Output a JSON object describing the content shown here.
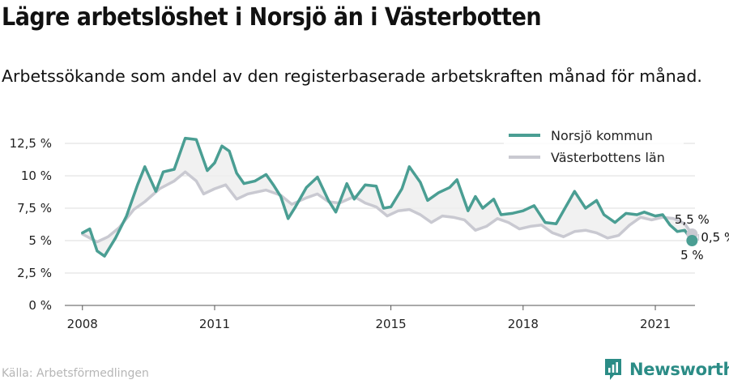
{
  "title": "Lägre arbetslöshet i Norsjö än i Västerbotten",
  "subtitle": "Arbetssökande som andel av den registerbaserade arbetskraften månad för månad.",
  "source": "Källa: Arbetsförmedlingen",
  "brand": {
    "name": "Newsworthy",
    "icon": "newsworthy-logo-icon"
  },
  "colors": {
    "series_1": "#4a9e93",
    "series_2": "#c9c9d1",
    "fill": "#eeeeee",
    "grid": "#dddddd"
  },
  "chart_data": {
    "type": "line",
    "x_axis": {
      "ticks": [
        "2008",
        "2011",
        "2015",
        "2018",
        "2021"
      ],
      "range": [
        2007.6,
        2021.9
      ]
    },
    "y_axis": {
      "ticks": [
        "0 %",
        "2,5 %",
        "5 %",
        "7,5 %",
        "10 %",
        "12,5 %"
      ],
      "range": [
        0,
        12.5
      ]
    },
    "grid": true,
    "legend_position": "top-right",
    "series": [
      {
        "name": "Norsjö kommun",
        "end_label": "5 %",
        "points": [
          [
            "2008-01",
            5.6
          ],
          [
            "2008-03",
            5.9
          ],
          [
            "2008-05",
            4.2
          ],
          [
            "2008-07",
            3.8
          ],
          [
            "2008-10",
            5.2
          ],
          [
            "2009-01",
            6.9
          ],
          [
            "2009-04",
            9.3
          ],
          [
            "2009-06",
            10.7
          ],
          [
            "2009-09",
            8.8
          ],
          [
            "2009-11",
            10.3
          ],
          [
            "2010-02",
            10.5
          ],
          [
            "2010-05",
            12.9
          ],
          [
            "2010-08",
            12.8
          ],
          [
            "2010-11",
            10.4
          ],
          [
            "2011-01",
            11.0
          ],
          [
            "2011-03",
            12.3
          ],
          [
            "2011-05",
            11.9
          ],
          [
            "2011-07",
            10.2
          ],
          [
            "2011-09",
            9.4
          ],
          [
            "2011-12",
            9.6
          ],
          [
            "2012-03",
            10.1
          ],
          [
            "2012-05",
            9.3
          ],
          [
            "2012-07",
            8.4
          ],
          [
            "2012-09",
            6.7
          ],
          [
            "2012-11",
            7.6
          ],
          [
            "2013-02",
            9.1
          ],
          [
            "2013-05",
            9.9
          ],
          [
            "2013-08",
            8.1
          ],
          [
            "2013-10",
            7.2
          ],
          [
            "2014-01",
            9.4
          ],
          [
            "2014-03",
            8.2
          ],
          [
            "2014-06",
            9.3
          ],
          [
            "2014-09",
            9.2
          ],
          [
            "2014-11",
            7.5
          ],
          [
            "2015-01",
            7.6
          ],
          [
            "2015-04",
            9.0
          ],
          [
            "2015-06",
            10.7
          ],
          [
            "2015-09",
            9.5
          ],
          [
            "2015-11",
            8.1
          ],
          [
            "2016-02",
            8.7
          ],
          [
            "2016-05",
            9.1
          ],
          [
            "2016-07",
            9.7
          ],
          [
            "2016-10",
            7.3
          ],
          [
            "2016-12",
            8.4
          ],
          [
            "2017-02",
            7.5
          ],
          [
            "2017-05",
            8.2
          ],
          [
            "2017-07",
            7.0
          ],
          [
            "2017-10",
            7.1
          ],
          [
            "2018-01",
            7.3
          ],
          [
            "2018-04",
            7.7
          ],
          [
            "2018-07",
            6.4
          ],
          [
            "2018-10",
            6.3
          ],
          [
            "2019-01",
            7.8
          ],
          [
            "2019-03",
            8.8
          ],
          [
            "2019-06",
            7.5
          ],
          [
            "2019-09",
            8.1
          ],
          [
            "2019-11",
            7.0
          ],
          [
            "2020-02",
            6.4
          ],
          [
            "2020-05",
            7.1
          ],
          [
            "2020-08",
            7.0
          ],
          [
            "2020-10",
            7.2
          ],
          [
            "2021-01",
            6.9
          ],
          [
            "2021-03",
            7.0
          ],
          [
            "2021-05",
            6.2
          ],
          [
            "2021-07",
            5.7
          ],
          [
            "2021-09",
            5.8
          ],
          [
            "2021-11",
            5.0
          ]
        ]
      },
      {
        "name": "Västerbottens län",
        "end_label": "5,5 %",
        "points": [
          [
            "2008-01",
            5.5
          ],
          [
            "2008-05",
            4.9
          ],
          [
            "2008-08",
            5.3
          ],
          [
            "2008-11",
            6.0
          ],
          [
            "2009-03",
            7.4
          ],
          [
            "2009-06",
            8.0
          ],
          [
            "2009-10",
            9.0
          ],
          [
            "2010-02",
            9.6
          ],
          [
            "2010-05",
            10.3
          ],
          [
            "2010-08",
            9.6
          ],
          [
            "2010-10",
            8.6
          ],
          [
            "2011-01",
            9.0
          ],
          [
            "2011-04",
            9.3
          ],
          [
            "2011-07",
            8.2
          ],
          [
            "2011-10",
            8.6
          ],
          [
            "2012-03",
            8.9
          ],
          [
            "2012-07",
            8.5
          ],
          [
            "2012-10",
            7.8
          ],
          [
            "2013-02",
            8.3
          ],
          [
            "2013-05",
            8.6
          ],
          [
            "2013-08",
            8.0
          ],
          [
            "2013-11",
            7.9
          ],
          [
            "2014-03",
            8.4
          ],
          [
            "2014-06",
            7.9
          ],
          [
            "2014-09",
            7.6
          ],
          [
            "2014-12",
            6.9
          ],
          [
            "2015-03",
            7.3
          ],
          [
            "2015-06",
            7.4
          ],
          [
            "2015-09",
            7.0
          ],
          [
            "2015-12",
            6.4
          ],
          [
            "2016-03",
            6.9
          ],
          [
            "2016-06",
            6.8
          ],
          [
            "2016-09",
            6.6
          ],
          [
            "2016-12",
            5.8
          ],
          [
            "2017-03",
            6.1
          ],
          [
            "2017-06",
            6.7
          ],
          [
            "2017-09",
            6.4
          ],
          [
            "2017-12",
            5.9
          ],
          [
            "2018-03",
            6.1
          ],
          [
            "2018-06",
            6.2
          ],
          [
            "2018-09",
            5.6
          ],
          [
            "2018-12",
            5.3
          ],
          [
            "2019-03",
            5.7
          ],
          [
            "2019-06",
            5.8
          ],
          [
            "2019-09",
            5.6
          ],
          [
            "2019-12",
            5.2
          ],
          [
            "2020-03",
            5.4
          ],
          [
            "2020-06",
            6.2
          ],
          [
            "2020-09",
            6.8
          ],
          [
            "2020-12",
            6.6
          ],
          [
            "2021-03",
            6.8
          ],
          [
            "2021-06",
            6.7
          ],
          [
            "2021-09",
            6.3
          ],
          [
            "2021-11",
            5.5
          ]
        ]
      }
    ],
    "annotations": [
      {
        "text": "0,5 %"
      }
    ]
  }
}
